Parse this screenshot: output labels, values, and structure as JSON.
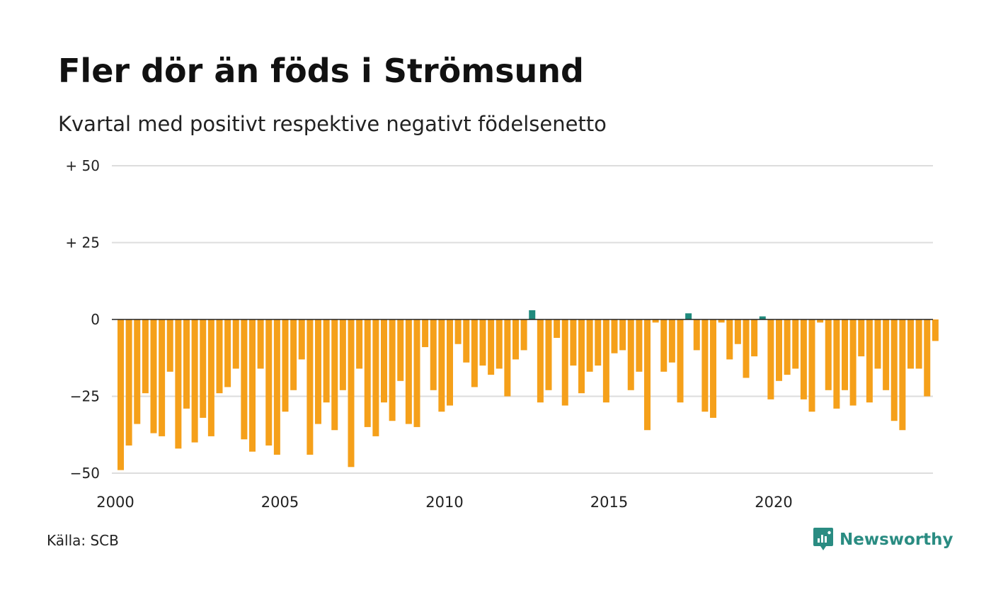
{
  "title": "Fler dör än föds i Strömsund",
  "subtitle": "Kvartal med positivt respektive negativt födelsenetto",
  "source": "Källa: SCB",
  "brand": {
    "name": "Newsworthy",
    "icon": "newsworthy-logo-icon",
    "color": "#2a8c82"
  },
  "chart_data": {
    "type": "bar",
    "title": "Fler dör än föds i Strömsund",
    "subtitle": "Kvartal med positivt respektive negativt födelsenetto",
    "xlabel": "",
    "ylabel": "",
    "ylim": [
      -50,
      50
    ],
    "xlim": [
      2000,
      2024.75
    ],
    "grid": true,
    "legend": "none",
    "y_ticks": [
      {
        "value": 50,
        "label": "+ 50"
      },
      {
        "value": 25,
        "label": "+ 25"
      },
      {
        "value": 0,
        "label": "0"
      },
      {
        "value": -25,
        "label": "−25"
      },
      {
        "value": -50,
        "label": "−50"
      }
    ],
    "x_ticks": [
      {
        "value": 2000,
        "label": "2000"
      },
      {
        "value": 2005,
        "label": "2005"
      },
      {
        "value": 2010,
        "label": "2010"
      },
      {
        "value": 2015,
        "label": "2015"
      },
      {
        "value": 2020,
        "label": "2020"
      }
    ],
    "colors": {
      "positive": "#1f8a7d",
      "negative": "#f5a01a"
    },
    "categories": [
      "2000 K1",
      "2000 K2",
      "2000 K3",
      "2000 K4",
      "2001 K1",
      "2001 K2",
      "2001 K3",
      "2001 K4",
      "2002 K1",
      "2002 K2",
      "2002 K3",
      "2002 K4",
      "2003 K1",
      "2003 K2",
      "2003 K3",
      "2003 K4",
      "2004 K1",
      "2004 K2",
      "2004 K3",
      "2004 K4",
      "2005 K1",
      "2005 K2",
      "2005 K3",
      "2005 K4",
      "2006 K1",
      "2006 K2",
      "2006 K3",
      "2006 K4",
      "2007 K1",
      "2007 K2",
      "2007 K3",
      "2007 K4",
      "2008 K1",
      "2008 K2",
      "2008 K3",
      "2008 K4",
      "2009 K1",
      "2009 K2",
      "2009 K3",
      "2009 K4",
      "2010 K1",
      "2010 K2",
      "2010 K3",
      "2010 K4",
      "2011 K1",
      "2011 K2",
      "2011 K3",
      "2011 K4",
      "2012 K1",
      "2012 K2",
      "2012 K3",
      "2012 K4",
      "2013 K1",
      "2013 K2",
      "2013 K3",
      "2013 K4",
      "2014 K1",
      "2014 K2",
      "2014 K3",
      "2014 K4",
      "2015 K1",
      "2015 K2",
      "2015 K3",
      "2015 K4",
      "2016 K1",
      "2016 K2",
      "2016 K3",
      "2016 K4",
      "2017 K1",
      "2017 K2",
      "2017 K3",
      "2017 K4",
      "2018 K1",
      "2018 K2",
      "2018 K3",
      "2018 K4",
      "2019 K1",
      "2019 K2",
      "2019 K3",
      "2019 K4",
      "2020 K1",
      "2020 K2",
      "2020 K3",
      "2020 K4",
      "2021 K1",
      "2021 K2",
      "2021 K3",
      "2021 K4",
      "2022 K1",
      "2022 K2",
      "2022 K3",
      "2022 K4",
      "2023 K1",
      "2023 K2",
      "2023 K3",
      "2023 K4",
      "2024 K1",
      "2024 K2",
      "2024 K3",
      "2024 K4"
    ],
    "values": [
      -49,
      -41,
      -34,
      -24,
      -37,
      -38,
      -17,
      -42,
      -29,
      -40,
      -32,
      -38,
      -24,
      -22,
      -16,
      -39,
      -43,
      -16,
      -41,
      -44,
      -30,
      -23,
      -13,
      -44,
      -34,
      -27,
      -36,
      -23,
      -48,
      -16,
      -35,
      -38,
      -27,
      -33,
      -20,
      -34,
      -35,
      -9,
      -23,
      -30,
      -28,
      -8,
      -14,
      -22,
      -15,
      -18,
      -16,
      -25,
      -13,
      -10,
      3,
      -27,
      -23,
      -6,
      -28,
      -15,
      -24,
      -17,
      -15,
      -27,
      -11,
      -10,
      -23,
      -17,
      -36,
      -1,
      -17,
      -14,
      -27,
      2,
      -10,
      -30,
      -32,
      -1,
      -13,
      -8,
      -19,
      -12,
      1,
      -26,
      -20,
      -18,
      -16,
      -26,
      -30,
      -1,
      -23,
      -29,
      -23,
      -28,
      -12,
      -27,
      -16,
      -23,
      -33,
      -36,
      -16,
      -16,
      -25,
      -7
    ]
  }
}
